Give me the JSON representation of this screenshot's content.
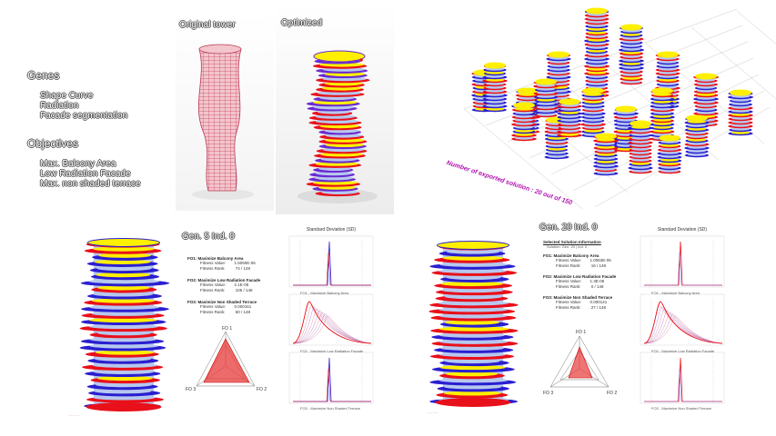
{
  "left_text": {
    "genes_heading": "Genes",
    "genes": [
      "Shape Curve",
      "Radiation",
      "Facade segmentation"
    ],
    "objectives_heading": "Objectives",
    "objectives": [
      "Max. Balcony Area",
      "Low Radiation Facade",
      "Max. non shaded terrace"
    ]
  },
  "panels": {
    "original_label": "Original tower",
    "optimized_label": "Optimized"
  },
  "grid_caption": "Number of exported solution : 20 out of 150",
  "solution_a": {
    "title": "Gen. 5 Ind. 0",
    "fo1_title": "FO1:  Maximize Balcony Area",
    "fo1_value_label": "Fitness Value:",
    "fo1_value": "1.5050E-06",
    "fo1_rank_label": "Fitness Rank:",
    "fo1_rank": "74 / 148",
    "fo2_title": "FO2:  Maximize Low Radiation Facade",
    "fo2_value_label": "Fitness Value:",
    "fo2_value": "2.1E-05",
    "fo2_rank_label": "Fitness Rank:",
    "fo2_rank": "105 / 148",
    "fo3_title": "FO3:  Maximize Non Shaded Terrace",
    "fo3_value_label": "Fitness Value:",
    "fo3_value": "0.000161",
    "fo3_rank_label": "Fitness Rank:",
    "fo3_rank": "60 / 148",
    "radar_labels": [
      "FO 1",
      "FO 2",
      "FO 3"
    ],
    "sd_title": "Standard Deviation (SD)",
    "sd_captions": [
      "FO1 - Maximize Balcony Area",
      "FO2 - Maximize Low Radiation Facade",
      "FO3 - Maximize Non Shaded Terrace"
    ]
  },
  "solution_b": {
    "title": "Gen. 20 Ind. 0",
    "info_header": "Selected Solution Information",
    "info_sub": "Solution: Gen. 20 | Ind. 0",
    "fo1_title": "FO1:  Maximize Balcony Area",
    "fo1_value_label": "Fitness Value:",
    "fo1_value": "1.0063E-06",
    "fo1_rank_label": "Fitness Rank:",
    "fo1_rank": "16 / 148",
    "fo2_title": "FO2:  Maximize Low Radiation Facade",
    "fo2_value_label": "Fitness Value:",
    "fo2_value": "1.3E-05",
    "fo2_rank_label": "Fitness Rank:",
    "fo2_rank": "0 / 148",
    "fo3_title": "FO3:  Maximize Non Shaded Terrace",
    "fo3_value_label": "Fitness Value:",
    "fo3_value": "0.000141",
    "fo3_rank_label": "Fitness Rank:",
    "fo3_rank": "27 / 148",
    "radar_labels": [
      "FO 1",
      "FO 2",
      "FO 3"
    ],
    "sd_title": "Standard Deviation (SD)",
    "sd_captions": [
      "FO1 - Maximize Balcony Area",
      "FO2 - Maximize Low Radiation Facade",
      "FO3 - Maximize Non Shaded Terrace"
    ]
  },
  "colors": {
    "yellow": "#ffef00",
    "red": "#e8101a",
    "blue": "#2a1fd0",
    "light_blue": "#b6c8ee",
    "pink_mesh": "#d65c72",
    "magenta_text": "#b10fb0",
    "radar_fill": "#e83a3a"
  }
}
